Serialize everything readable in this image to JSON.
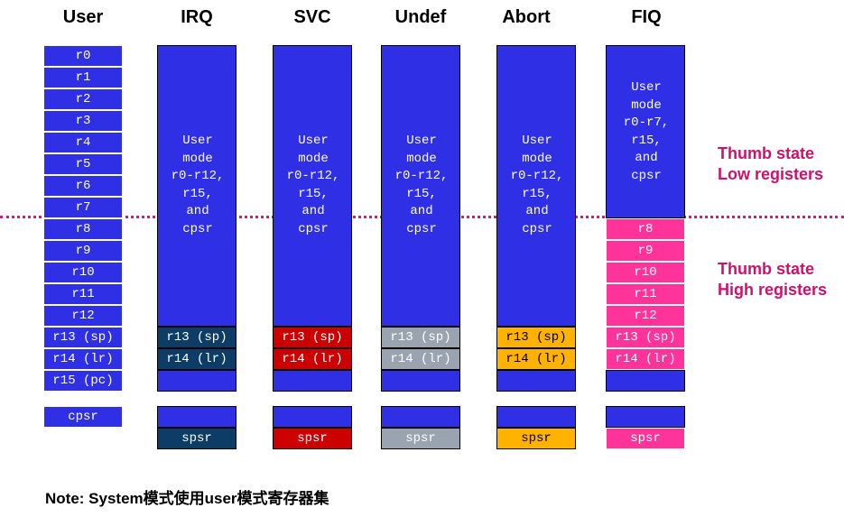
{
  "columns": [
    {
      "name": "User"
    },
    {
      "name": "IRQ"
    },
    {
      "name": "SVC"
    },
    {
      "name": "Undef"
    },
    {
      "name": "Abort"
    },
    {
      "name": "FIQ"
    }
  ],
  "user_registers": [
    "r0",
    "r1",
    "r2",
    "r3",
    "r4",
    "r5",
    "r6",
    "r7",
    "r8",
    "r9",
    "r10",
    "r11",
    "r12",
    "r13 (sp)",
    "r14 (lr)",
    "r15 (pc)"
  ],
  "user_cpsr": "cpsr",
  "shared_text": "User mode r0-r12, r15, and cpsr",
  "shared_lines": [
    "User",
    "mode",
    "r0-r12,",
    "r15,",
    "and",
    "cpsr"
  ],
  "fiq_shared_lines": [
    "User",
    "mode",
    "r0-r7,",
    "r15,",
    "and",
    "cpsr"
  ],
  "banked": {
    "sp": "r13 (sp)",
    "lr": "r14 (lr)",
    "spsr": "spsr"
  },
  "fiq_banked": [
    "r8",
    "r9",
    "r10",
    "r11",
    "r12",
    "r13 (sp)",
    "r14 (lr)"
  ],
  "mode_colors": {
    "register_blue": "#2f2fe6",
    "IRQ": "#0d3d66",
    "SVC": "#cc0000",
    "Undef": "#9aa3b0",
    "Abort": "#ffb300",
    "FIQ": "#ff3399"
  },
  "labels": {
    "low": [
      "Thumb state",
      "Low registers"
    ],
    "high": [
      "Thumb state",
      "High registers"
    ]
  },
  "note": "Note: System模式使用user模式寄存器集"
}
